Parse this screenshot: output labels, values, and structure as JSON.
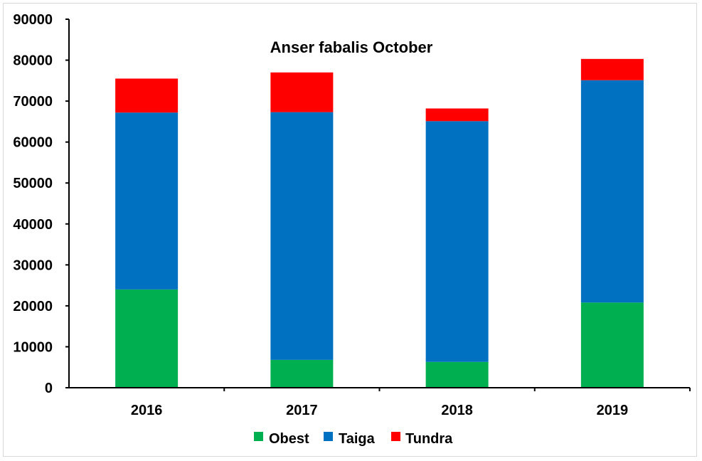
{
  "chart_data": {
    "type": "bar",
    "stacked": true,
    "title": "Anser fabalis October",
    "xlabel": "",
    "ylabel": "",
    "categories": [
      "2016",
      "2017",
      "2018",
      "2019"
    ],
    "series": [
      {
        "name": "Obest",
        "color": "#00b050",
        "values": [
          24000,
          6800,
          6300,
          20800
        ]
      },
      {
        "name": "Taiga",
        "color": "#0070c0",
        "values": [
          43200,
          60500,
          58800,
          54300
        ]
      },
      {
        "name": "Tundra",
        "color": "#ff0000",
        "values": [
          8300,
          9700,
          3100,
          5200
        ]
      }
    ],
    "ylim": [
      0,
      90000
    ],
    "yticks": [
      0,
      10000,
      20000,
      30000,
      40000,
      50000,
      60000,
      70000,
      80000,
      90000
    ],
    "grid": false,
    "legend_position": "bottom"
  }
}
